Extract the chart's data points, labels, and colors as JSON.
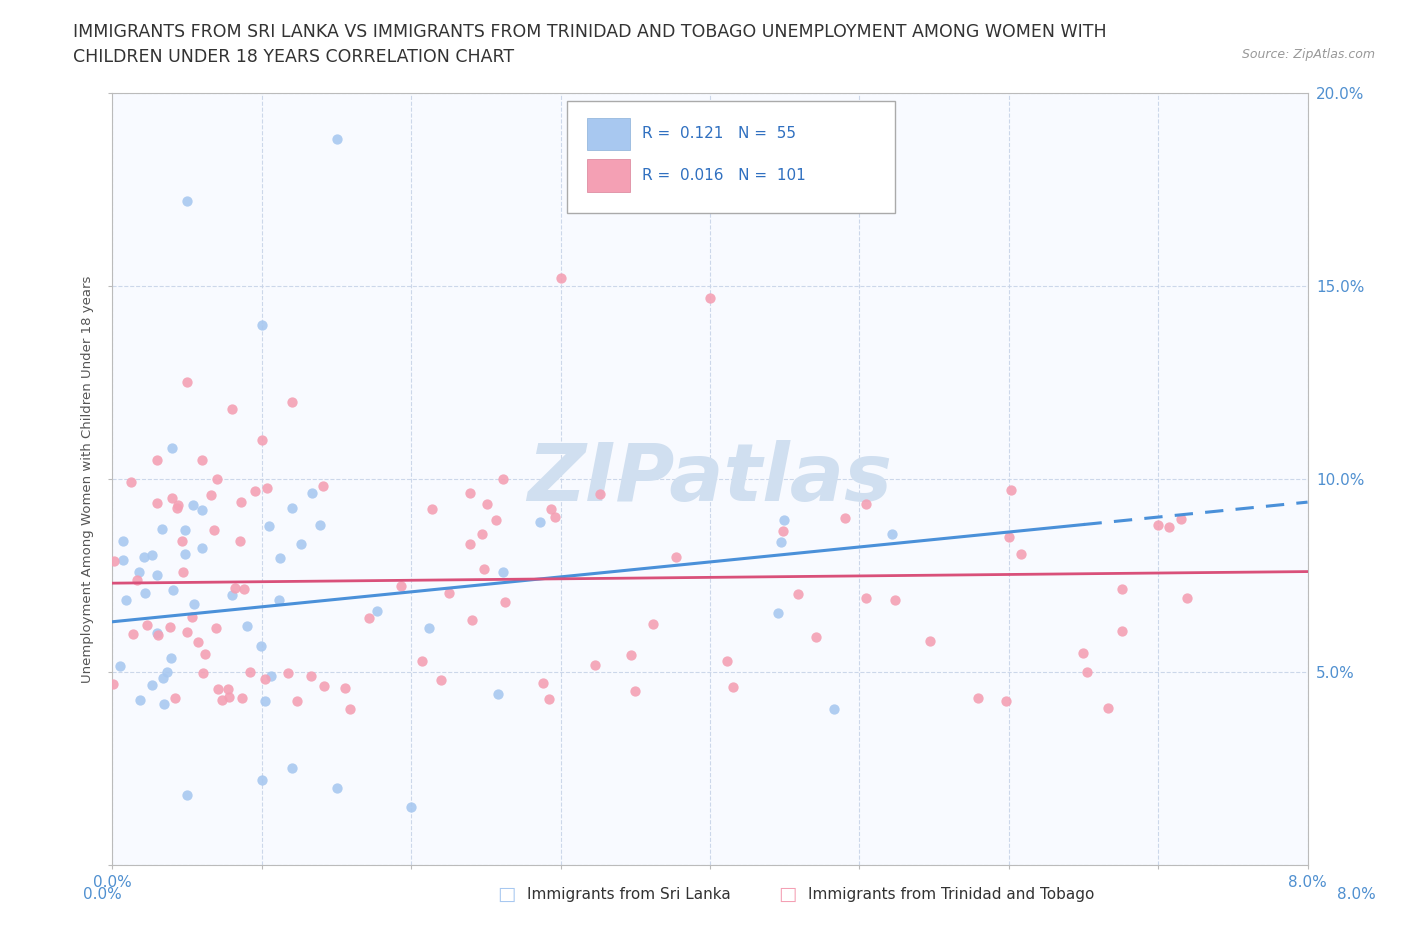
{
  "title_line1": "IMMIGRANTS FROM SRI LANKA VS IMMIGRANTS FROM TRINIDAD AND TOBAGO UNEMPLOYMENT AMONG WOMEN WITH",
  "title_line2": "CHILDREN UNDER 18 YEARS CORRELATION CHART",
  "source": "Source: ZipAtlas.com",
  "ylabel": "Unemployment Among Women with Children Under 18 years",
  "xmin": 0.0,
  "xmax": 0.08,
  "ymin": 0.0,
  "ymax": 0.2,
  "legend1_label": "Immigrants from Sri Lanka",
  "legend2_label": "Immigrants from Trinidad and Tobago",
  "R1": 0.121,
  "N1": 55,
  "R2": 0.016,
  "N2": 101,
  "color1": "#a8c8f0",
  "color2": "#f4a0b4",
  "trendline1_color": "#4a90d9",
  "trendline2_color": "#d9507a",
  "watermark": "ZIPatlas",
  "watermark_color": "#d0dff0",
  "title_color": "#333333",
  "title_fontsize": 12.5,
  "axis_color": "#5090d0",
  "legend_R_color": "#3070c0",
  "grid_color": "#c8d4e8",
  "background_color": "#f8faff"
}
